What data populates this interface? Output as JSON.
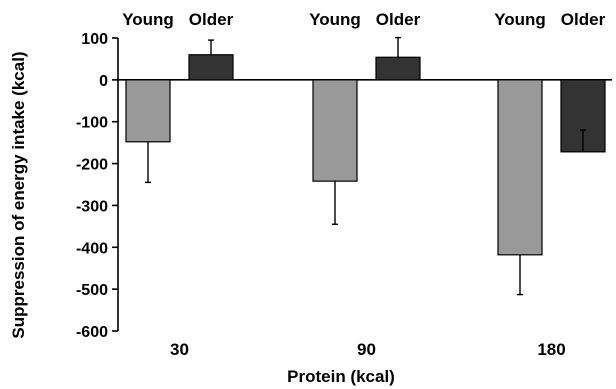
{
  "chart_data": {
    "type": "bar",
    "categories": [
      "30",
      "90",
      "180"
    ],
    "group_labels": [
      "Young",
      "Older"
    ],
    "series": [
      {
        "name": "Young",
        "color": "#999999",
        "values": [
          -148,
          -242,
          -418
        ],
        "error": [
          97,
          103,
          95
        ],
        "error_direction": "down"
      },
      {
        "name": "Older",
        "color": "#333333",
        "values": [
          60,
          54,
          -172
        ],
        "error": [
          35,
          47,
          52
        ],
        "error_direction": "up"
      }
    ],
    "title": "",
    "xlabel": "Protein (kcal)",
    "ylabel": "Suppression of energy intake (kcal)",
    "ylim": [
      -600,
      100
    ],
    "yticks": [
      100,
      0,
      -100,
      -200,
      -300,
      -400,
      -500,
      -600
    ],
    "grid": false,
    "legend": "none"
  }
}
